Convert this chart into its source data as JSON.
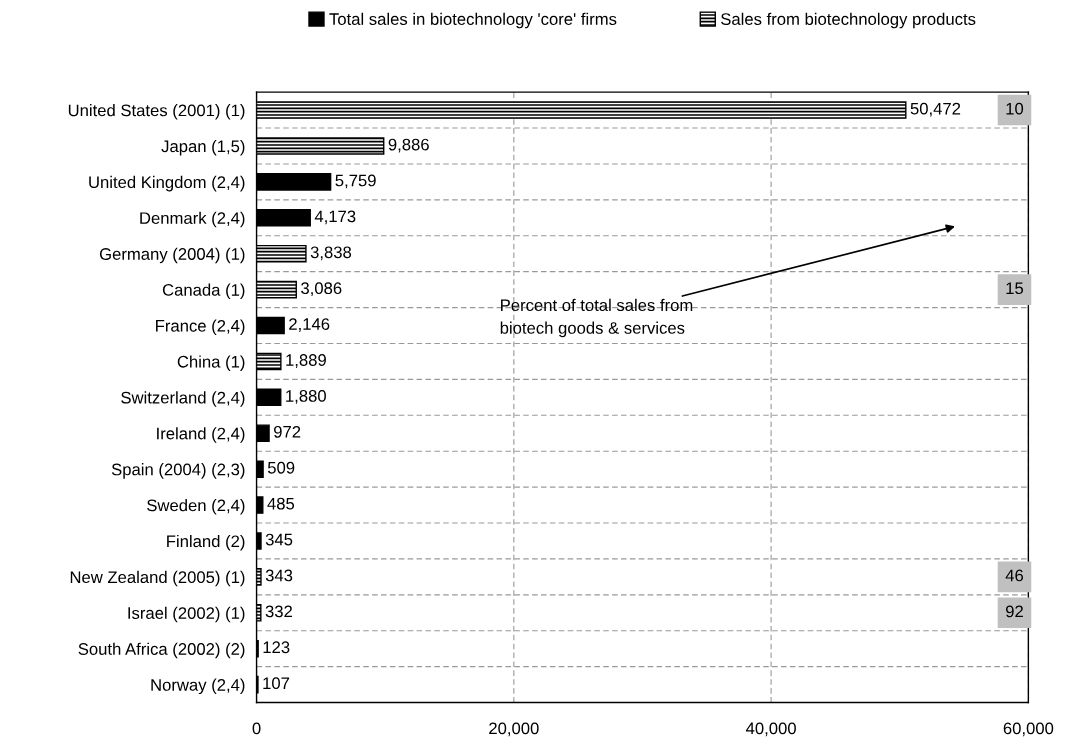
{
  "chart_data": {
    "type": "bar",
    "orientation": "horizontal",
    "categories": [
      "United States (2001) (1)",
      "Japan (1,5)",
      "United Kingdom (2,4)",
      "Denmark (2,4)",
      "Germany (2004) (1)",
      "Canada (1)",
      "France (2,4)",
      "China (1)",
      "Switzerland (2,4)",
      "Ireland (2,4)",
      "Spain (2004) (2,3)",
      "Sweden (2,4)",
      "Finland (2)",
      "New Zealand (2005) (1)",
      "Israel (2002) (1)",
      "South Africa (2002) (2)",
      "Norway (2,4)"
    ],
    "series": [
      {
        "name": "Total sales in biotechnology 'core' firms",
        "color": "#000000",
        "values": [
          null,
          null,
          5759,
          4173,
          null,
          null,
          2146,
          null,
          1880,
          972,
          509,
          485,
          345,
          null,
          null,
          123,
          107
        ],
        "value_labels": [
          null,
          null,
          "5,759",
          "4,173",
          null,
          null,
          "2,146",
          null,
          "1,880",
          "972",
          "509",
          "485",
          "345",
          null,
          null,
          "123",
          "107"
        ]
      },
      {
        "name": "Sales from biotechnology products",
        "color": "#000000",
        "values": [
          50472,
          9886,
          null,
          null,
          3838,
          3086,
          null,
          1889,
          null,
          null,
          null,
          null,
          null,
          343,
          332,
          null,
          null
        ],
        "value_labels": [
          "50,472",
          "9,886",
          null,
          null,
          "3,838",
          "3,086",
          null,
          "1,889",
          null,
          null,
          null,
          null,
          null,
          "343",
          "332",
          null,
          null
        ]
      }
    ],
    "xlim": [
      0,
      60000
    ],
    "xticks": [
      {
        "value": 0,
        "label": "0"
      },
      {
        "value": 20000,
        "label": "20,000"
      },
      {
        "value": 40000,
        "label": "40,000"
      },
      {
        "value": 60000,
        "label": "60,000"
      }
    ],
    "grid": true,
    "legend": "top",
    "annotations": [
      {
        "text": "10",
        "y": "United States (2001) (1)"
      },
      {
        "text": "15",
        "y": "Canada (1)"
      },
      {
        "text": "46",
        "y": "New Zealand (2005) (1)"
      },
      {
        "text": "92",
        "y": "Israel (2002) (1)"
      },
      "Percent of total sales from\nbiotech goods & services"
    ]
  }
}
